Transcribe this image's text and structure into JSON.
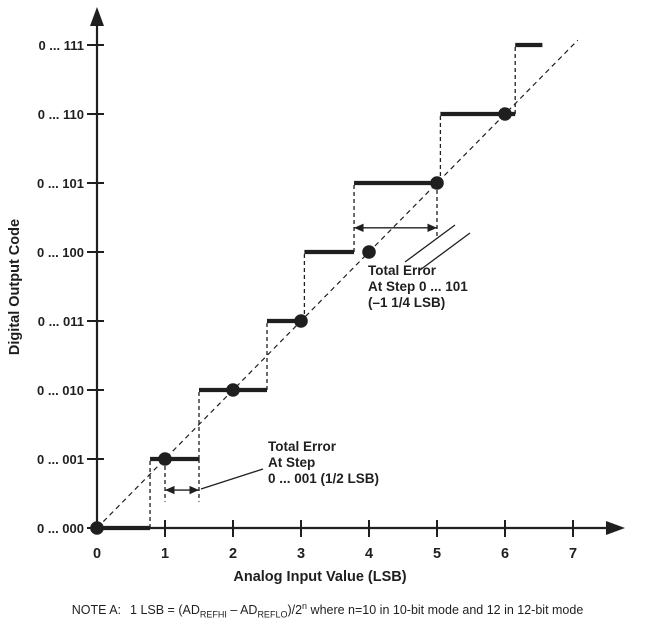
{
  "colors": {
    "ink": "#1f1f1f",
    "background": "#ffffff"
  },
  "chart_data": {
    "type": "line",
    "title": "",
    "xlabel": "Analog Input Value (LSB)",
    "ylabel": "Digital Output Code",
    "xlim": [
      0,
      7.6
    ],
    "ylim": [
      0,
      7.4
    ],
    "grid": false,
    "x_tick_labels": [
      "0",
      "1",
      "2",
      "3",
      "4",
      "5",
      "6",
      "7"
    ],
    "y_tick_labels": [
      "0 ... 000",
      "0 ... 001",
      "0 ... 010",
      "0 ... 011",
      "0 ... 100",
      "0 ... 101",
      "0 ... 110",
      "0 ... 111"
    ],
    "ideal_line": {
      "style": "dashed",
      "x": [
        0,
        7.07
      ],
      "y": [
        0,
        7.07
      ]
    },
    "staircase_steps": [
      {
        "code": "0 ... 000",
        "level": 0,
        "x_start": 0.0,
        "x_end": 0.78
      },
      {
        "code": "0 ... 001",
        "level": 1,
        "x_start": 0.78,
        "x_end": 1.5
      },
      {
        "code": "0 ... 010",
        "level": 2,
        "x_start": 1.5,
        "x_end": 2.5
      },
      {
        "code": "0 ... 011",
        "level": 3,
        "x_start": 2.5,
        "x_end": 3.05
      },
      {
        "code": "0 ... 100",
        "level": 4,
        "x_start": 3.05,
        "x_end": 3.78
      },
      {
        "code": "0 ... 101",
        "level": 5,
        "x_start": 3.78,
        "x_end": 5.05
      },
      {
        "code": "0 ... 110",
        "level": 6,
        "x_start": 5.05,
        "x_end": 6.15
      },
      {
        "code": "0 ... 111",
        "level": 7,
        "x_start": 6.15,
        "x_end": 6.55
      }
    ],
    "code_center_dots": [
      {
        "x": 0,
        "level": 0
      },
      {
        "x": 1,
        "level": 1
      },
      {
        "x": 2,
        "level": 2
      },
      {
        "x": 3,
        "level": 3
      },
      {
        "x": 4,
        "level": 4
      },
      {
        "x": 5,
        "level": 5
      },
      {
        "x": 6,
        "level": 6
      }
    ],
    "guide_drops": [
      {
        "x": 1.0,
        "y_from": 1.0,
        "y_to": 0.38
      },
      {
        "x": 1.5,
        "y_from": 1.0,
        "y_to": 0.38
      },
      {
        "x": 5.0,
        "y_from": 5.0,
        "y_to": 4.22
      }
    ],
    "annotations": [
      {
        "id": "error-101",
        "lines": [
          "Total Error",
          "At Step 0 ... 101",
          "(–1 1/4 LSB)"
        ],
        "arrow_from_x": 3.78,
        "arrow_to_x": 5.0,
        "arrow_level": 4.35
      },
      {
        "id": "error-001",
        "lines": [
          "Total Error",
          "At Step",
          "0 ... 001 (1/2 LSB)"
        ],
        "arrow_from_x": 1.0,
        "arrow_to_x": 1.5,
        "arrow_level": 0.55
      }
    ]
  },
  "note": {
    "prefix": "NOTE A:",
    "f1": "1 LSB = (AD",
    "sub1": "REFHI",
    "f2": " – AD",
    "sub2": "REFLO",
    "f3": ")/2",
    "sup": "n",
    "f4": " where n=10 in 10-bit mode and 12 in 12-bit mode"
  }
}
